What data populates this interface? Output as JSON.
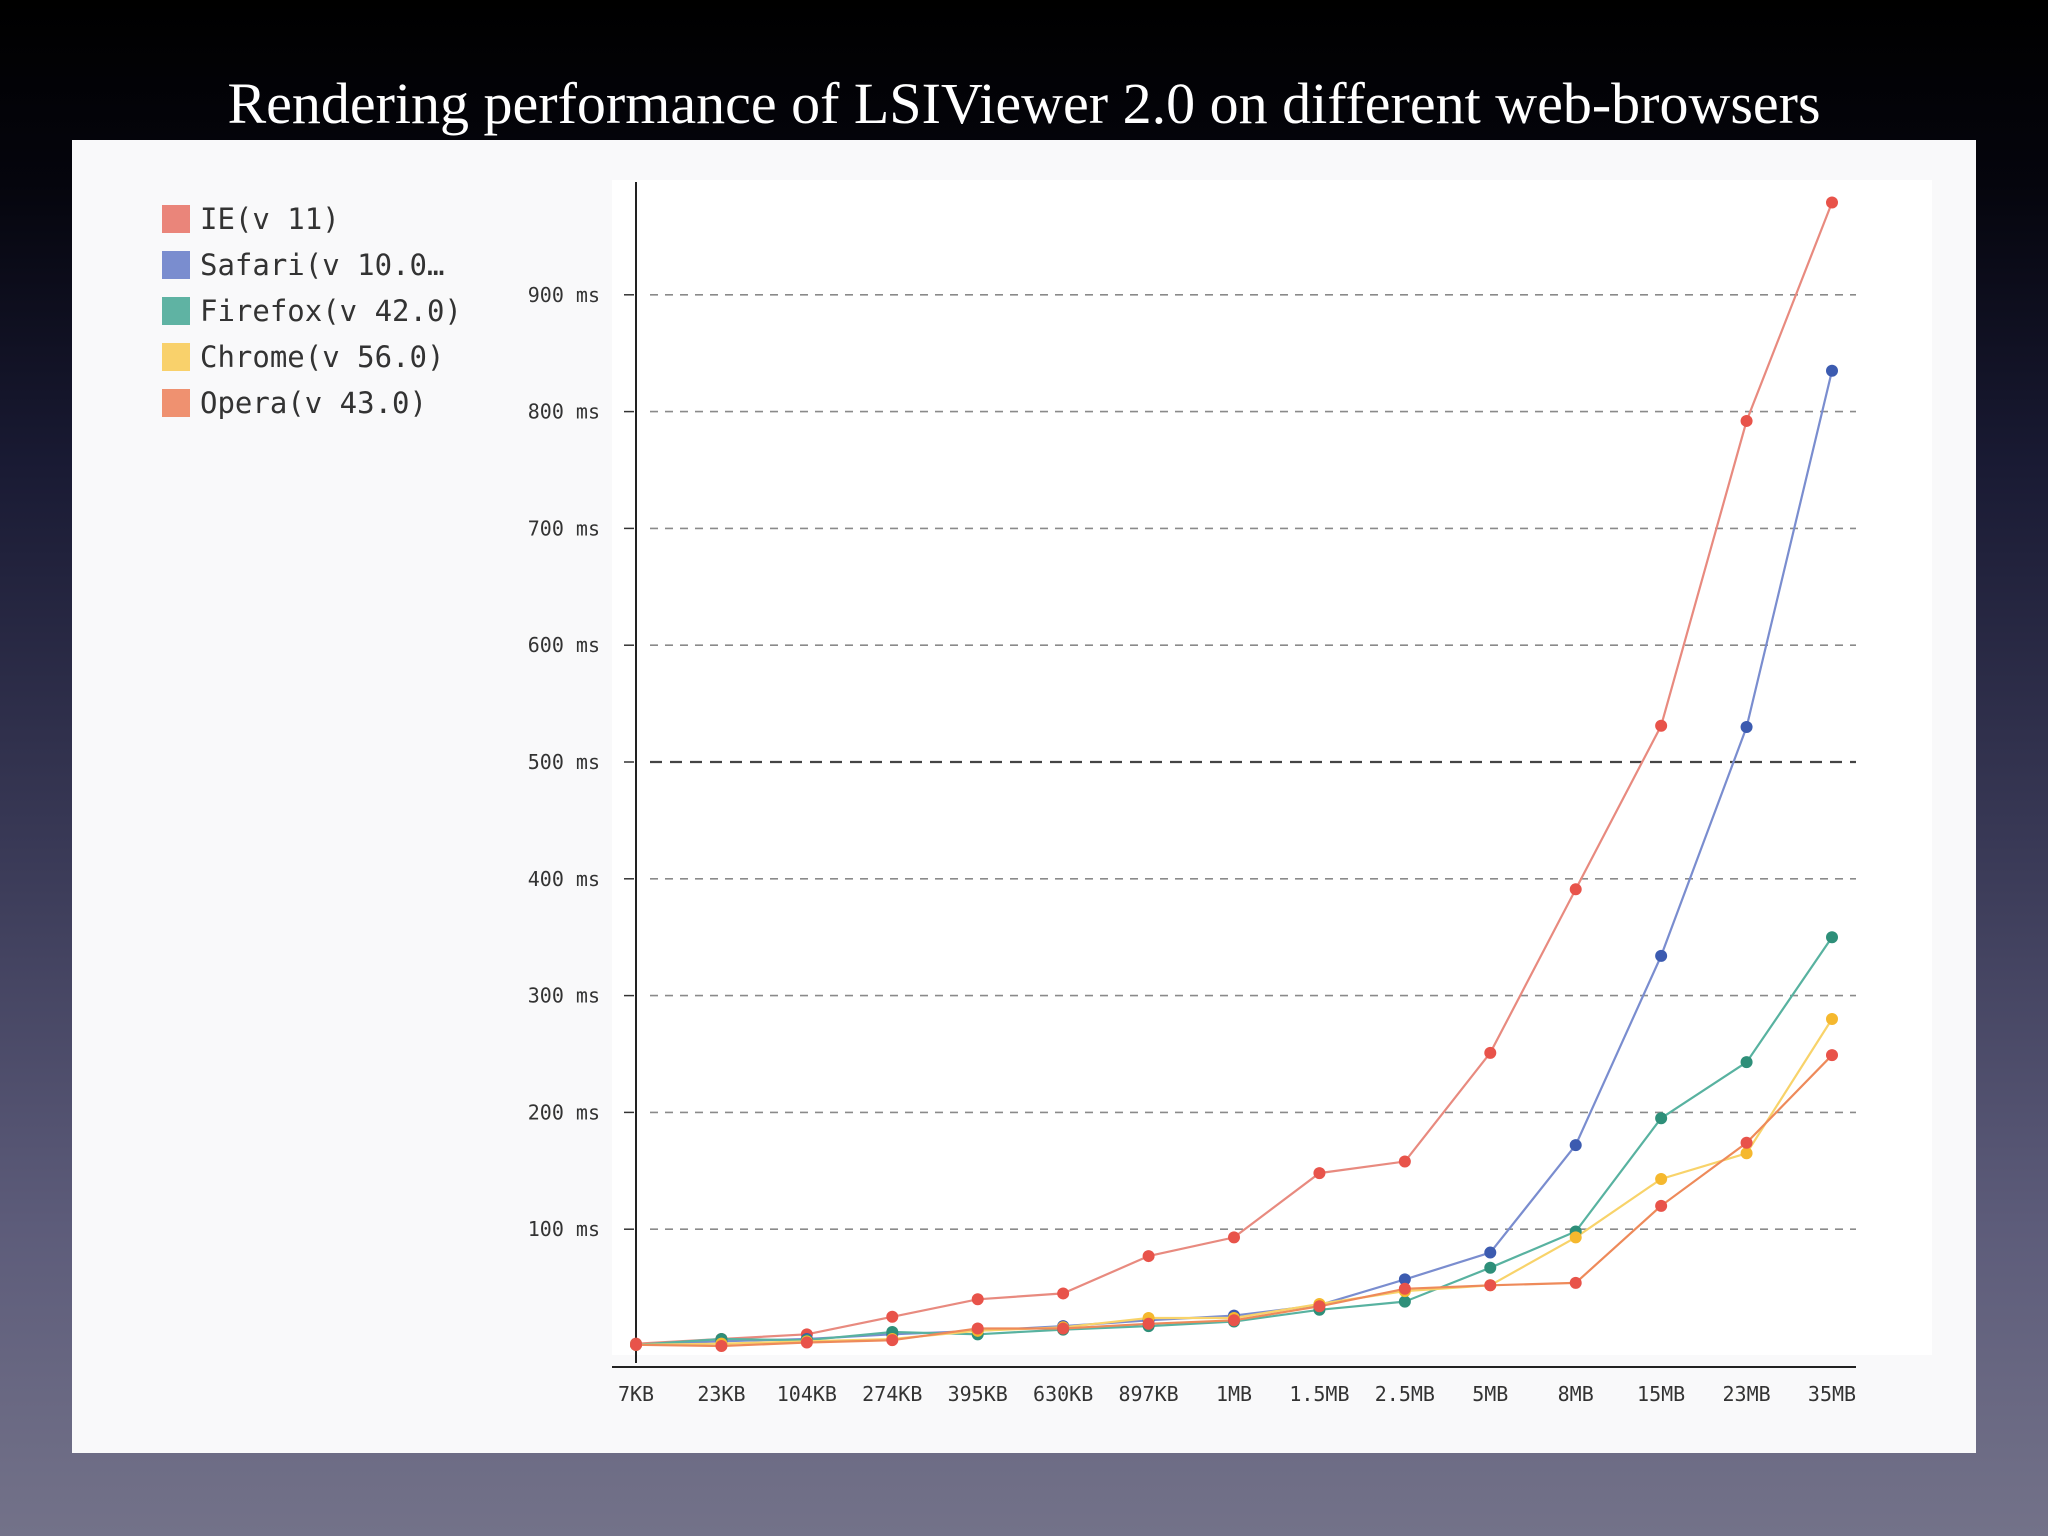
{
  "slide": {
    "title": "Rendering performance of LSIViewer 2.0 on different web-browsers"
  },
  "chart_data": {
    "type": "line",
    "title": "",
    "xlabel": "",
    "ylabel": "",
    "categories": [
      "7KB",
      "23KB",
      "104KB",
      "274KB",
      "395KB",
      "630KB",
      "897KB",
      "1MB",
      "1.5MB",
      "2.5MB",
      "5MB",
      "8MB",
      "15MB",
      "23MB",
      "35MB"
    ],
    "ylim": [
      0,
      1000
    ],
    "yticks": [
      {
        "value": 100,
        "label": "100 ms"
      },
      {
        "value": 200,
        "label": "200 ms"
      },
      {
        "value": 300,
        "label": "300 ms"
      },
      {
        "value": 400,
        "label": "400 ms"
      },
      {
        "value": 500,
        "label": "500 ms"
      },
      {
        "value": 600,
        "label": "600 ms"
      },
      {
        "value": 700,
        "label": "700 ms"
      },
      {
        "value": 800,
        "label": "800 ms"
      },
      {
        "value": 900,
        "label": "900 ms"
      }
    ],
    "highlight_line": 500,
    "grid": true,
    "legend_position": "top-left",
    "series": [
      {
        "name": "IE(v 11)",
        "color": "#e8534a",
        "line_color": "#e88a7f",
        "values": [
          2,
          6,
          10,
          25,
          40,
          45,
          77,
          93,
          148,
          158,
          251,
          391,
          531,
          792,
          979
        ]
      },
      {
        "name": "Safari(v 10.0…",
        "color": "#3c5bb0",
        "line_color": "#7a8dcf",
        "values": [
          1,
          4,
          6,
          10,
          13,
          17,
          22,
          26,
          35,
          57,
          80,
          172,
          334,
          530,
          835
        ]
      },
      {
        "name": "Firefox(v 42.0)",
        "color": "#2e8f79",
        "line_color": "#58b2a0",
        "values": [
          1,
          6,
          5,
          12,
          10,
          14,
          17,
          21,
          31,
          38,
          67,
          98,
          195,
          243,
          350
        ]
      },
      {
        "name": "Chrome(v 56.0)",
        "color": "#f5b82e",
        "line_color": "#f8d36a",
        "values": [
          1,
          2,
          4,
          6,
          13,
          16,
          24,
          24,
          36,
          47,
          52,
          93,
          143,
          165,
          280
        ]
      },
      {
        "name": "Opera(v 43.0)",
        "color": "#e8534a",
        "line_color": "#ee8a5a",
        "values": [
          1,
          0,
          3,
          5,
          15,
          15,
          19,
          22,
          34,
          49,
          52,
          54,
          120,
          174,
          249
        ]
      }
    ]
  },
  "legend": {
    "swatch_colors": [
      "#ea857a",
      "#7a8dcf",
      "#5fb3a3",
      "#f9d16b",
      "#ef9170"
    ]
  }
}
